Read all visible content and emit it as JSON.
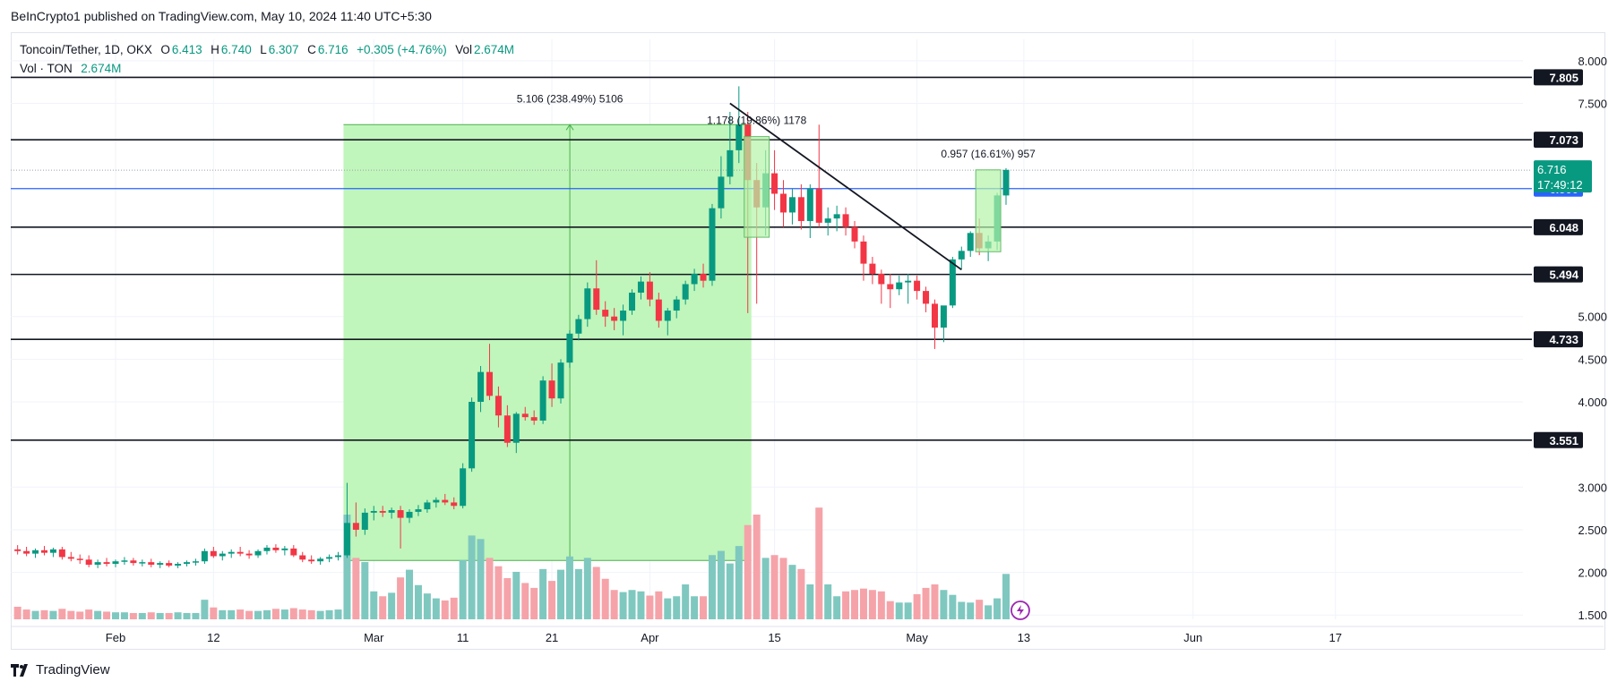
{
  "header": {
    "publisher": "BeInCrypto1 published on TradingView.com, May 10, 2024 11:40 UTC+5:30"
  },
  "legend": {
    "symbol": "Toncoin/Tether, 1D, OKX",
    "o_label": "O",
    "o_value": "6.413",
    "h_label": "H",
    "h_value": "6.740",
    "l_label": "L",
    "l_value": "6.307",
    "c_label": "C",
    "c_value": "6.716",
    "change": "+0.305 (+4.76%)",
    "vol_label": "Vol",
    "vol_value": "2.674M",
    "vol_series_label": "Vol · TON",
    "vol_series_value": "2.674M"
  },
  "footer": {
    "brand": "TradingView"
  },
  "colors": {
    "up": "#089981",
    "down": "#f23645",
    "vol_up": "#7fc8c0",
    "vol_down": "#f5a3a9",
    "range_fill": "#bdf5b7",
    "blue_line": "#2962ff"
  },
  "chart_data": {
    "type": "candlestick",
    "ylim": [
      1.45,
      8.25
    ],
    "y_ticks": [
      "8.000",
      "7.500",
      "5.000",
      "4.500",
      "4.000",
      "3.000",
      "2.500",
      "2.000",
      "1.500"
    ],
    "x_tick_labels": [
      {
        "date": "2024-02-01",
        "label": "Feb"
      },
      {
        "date": "2024-02-12",
        "label": "12"
      },
      {
        "date": "2024-03-01",
        "label": "Mar"
      },
      {
        "date": "2024-03-11",
        "label": "11"
      },
      {
        "date": "2024-03-21",
        "label": "21"
      },
      {
        "date": "2024-04-01",
        "label": "Apr"
      },
      {
        "date": "2024-04-15",
        "label": "15"
      },
      {
        "date": "2024-05-01",
        "label": "May"
      },
      {
        "date": "2024-05-13",
        "label": "13"
      },
      {
        "date": "2024-06-01",
        "label": "Jun"
      },
      {
        "date": "2024-06-17",
        "label": "17"
      }
    ],
    "horizontal_levels": [
      {
        "label": "7.805",
        "value": 7.805
      },
      {
        "label": "7.073",
        "value": 7.073
      },
      {
        "label": "6.048",
        "value": 6.048
      },
      {
        "label": "5.494",
        "value": 5.494
      },
      {
        "label": "4.733",
        "value": 4.733
      },
      {
        "label": "3.551",
        "value": 3.551
      }
    ],
    "blue_level": {
      "label": "6.500",
      "value": 6.5
    },
    "last_price": {
      "value": 6.716,
      "label": "6.716",
      "countdown": "17:49:12"
    },
    "range_box": {
      "start": "2024-02-27",
      "end": "2024-04-12",
      "low": 2.14,
      "high": 7.25,
      "label": "5.106 (238.49%) 5106"
    },
    "measures": [
      {
        "label": "1.178 (19.86%) 1178",
        "start": "2024-04-12",
        "end": "2024-04-14",
        "low": 5.93,
        "high": 7.11
      },
      {
        "label": "0.957 (16.61%) 957",
        "start": "2024-05-08",
        "end": "2024-05-10",
        "low": 5.76,
        "high": 6.72
      }
    ],
    "trendline": {
      "start": {
        "date": "2024-04-10",
        "value": 7.5
      },
      "end": {
        "date": "2024-05-06",
        "value": 5.55
      }
    },
    "candles": [
      {
        "d": "2024-01-21",
        "o": 2.27,
        "h": 2.32,
        "l": 2.21,
        "c": 2.25,
        "v": 0.18
      },
      {
        "d": "2024-01-22",
        "o": 2.25,
        "h": 2.3,
        "l": 2.19,
        "c": 2.22,
        "v": 0.14
      },
      {
        "d": "2024-01-23",
        "o": 2.22,
        "h": 2.28,
        "l": 2.17,
        "c": 2.26,
        "v": 0.12
      },
      {
        "d": "2024-01-24",
        "o": 2.26,
        "h": 2.31,
        "l": 2.2,
        "c": 2.23,
        "v": 0.13
      },
      {
        "d": "2024-01-25",
        "o": 2.23,
        "h": 2.29,
        "l": 2.18,
        "c": 2.27,
        "v": 0.12
      },
      {
        "d": "2024-01-26",
        "o": 2.27,
        "h": 2.3,
        "l": 2.15,
        "c": 2.18,
        "v": 0.15
      },
      {
        "d": "2024-01-27",
        "o": 2.18,
        "h": 2.24,
        "l": 2.13,
        "c": 2.16,
        "v": 0.12
      },
      {
        "d": "2024-01-28",
        "o": 2.16,
        "h": 2.21,
        "l": 2.1,
        "c": 2.15,
        "v": 0.11
      },
      {
        "d": "2024-01-29",
        "o": 2.15,
        "h": 2.2,
        "l": 2.06,
        "c": 2.09,
        "v": 0.14
      },
      {
        "d": "2024-01-30",
        "o": 2.09,
        "h": 2.15,
        "l": 2.05,
        "c": 2.12,
        "v": 0.12
      },
      {
        "d": "2024-01-31",
        "o": 2.12,
        "h": 2.17,
        "l": 2.07,
        "c": 2.1,
        "v": 0.11
      },
      {
        "d": "2024-02-01",
        "o": 2.1,
        "h": 2.15,
        "l": 2.06,
        "c": 2.13,
        "v": 0.1
      },
      {
        "d": "2024-02-02",
        "o": 2.13,
        "h": 2.18,
        "l": 2.09,
        "c": 2.14,
        "v": 0.1
      },
      {
        "d": "2024-02-03",
        "o": 2.14,
        "h": 2.17,
        "l": 2.08,
        "c": 2.11,
        "v": 0.09
      },
      {
        "d": "2024-02-04",
        "o": 2.11,
        "h": 2.15,
        "l": 2.07,
        "c": 2.12,
        "v": 0.09
      },
      {
        "d": "2024-02-05",
        "o": 2.12,
        "h": 2.16,
        "l": 2.06,
        "c": 2.09,
        "v": 0.1
      },
      {
        "d": "2024-02-06",
        "o": 2.09,
        "h": 2.13,
        "l": 2.05,
        "c": 2.11,
        "v": 0.09
      },
      {
        "d": "2024-02-07",
        "o": 2.11,
        "h": 2.14,
        "l": 2.06,
        "c": 2.08,
        "v": 0.09
      },
      {
        "d": "2024-02-08",
        "o": 2.08,
        "h": 2.12,
        "l": 2.05,
        "c": 2.1,
        "v": 0.1
      },
      {
        "d": "2024-02-09",
        "o": 2.1,
        "h": 2.14,
        "l": 2.07,
        "c": 2.12,
        "v": 0.09
      },
      {
        "d": "2024-02-10",
        "o": 2.12,
        "h": 2.16,
        "l": 2.08,
        "c": 2.13,
        "v": 0.09
      },
      {
        "d": "2024-02-11",
        "o": 2.13,
        "h": 2.28,
        "l": 2.1,
        "c": 2.25,
        "v": 0.28
      },
      {
        "d": "2024-02-12",
        "o": 2.25,
        "h": 2.3,
        "l": 2.17,
        "c": 2.19,
        "v": 0.17
      },
      {
        "d": "2024-02-13",
        "o": 2.19,
        "h": 2.25,
        "l": 2.14,
        "c": 2.22,
        "v": 0.13
      },
      {
        "d": "2024-02-14",
        "o": 2.22,
        "h": 2.27,
        "l": 2.17,
        "c": 2.24,
        "v": 0.13
      },
      {
        "d": "2024-02-15",
        "o": 2.24,
        "h": 2.3,
        "l": 2.19,
        "c": 2.22,
        "v": 0.14
      },
      {
        "d": "2024-02-16",
        "o": 2.22,
        "h": 2.26,
        "l": 2.16,
        "c": 2.2,
        "v": 0.12
      },
      {
        "d": "2024-02-17",
        "o": 2.2,
        "h": 2.27,
        "l": 2.17,
        "c": 2.25,
        "v": 0.12
      },
      {
        "d": "2024-02-18",
        "o": 2.25,
        "h": 2.32,
        "l": 2.21,
        "c": 2.29,
        "v": 0.13
      },
      {
        "d": "2024-02-19",
        "o": 2.29,
        "h": 2.33,
        "l": 2.23,
        "c": 2.26,
        "v": 0.15
      },
      {
        "d": "2024-02-20",
        "o": 2.26,
        "h": 2.31,
        "l": 2.2,
        "c": 2.28,
        "v": 0.14
      },
      {
        "d": "2024-02-21",
        "o": 2.28,
        "h": 2.32,
        "l": 2.18,
        "c": 2.2,
        "v": 0.16
      },
      {
        "d": "2024-02-22",
        "o": 2.2,
        "h": 2.24,
        "l": 2.12,
        "c": 2.15,
        "v": 0.14
      },
      {
        "d": "2024-02-23",
        "o": 2.15,
        "h": 2.2,
        "l": 2.1,
        "c": 2.13,
        "v": 0.13
      },
      {
        "d": "2024-02-24",
        "o": 2.13,
        "h": 2.18,
        "l": 2.09,
        "c": 2.16,
        "v": 0.12
      },
      {
        "d": "2024-02-25",
        "o": 2.16,
        "h": 2.21,
        "l": 2.12,
        "c": 2.18,
        "v": 0.13
      },
      {
        "d": "2024-02-26",
        "o": 2.18,
        "h": 2.24,
        "l": 2.14,
        "c": 2.2,
        "v": 0.14
      },
      {
        "d": "2024-02-27",
        "o": 2.2,
        "h": 3.05,
        "l": 2.17,
        "c": 2.58,
        "v": 1.5
      },
      {
        "d": "2024-02-28",
        "o": 2.58,
        "h": 2.82,
        "l": 2.42,
        "c": 2.5,
        "v": 0.88
      },
      {
        "d": "2024-02-29",
        "o": 2.5,
        "h": 2.75,
        "l": 2.44,
        "c": 2.7,
        "v": 0.82
      },
      {
        "d": "2024-03-01",
        "o": 2.7,
        "h": 2.78,
        "l": 2.61,
        "c": 2.72,
        "v": 0.4
      },
      {
        "d": "2024-03-02",
        "o": 2.72,
        "h": 2.78,
        "l": 2.65,
        "c": 2.7,
        "v": 0.33
      },
      {
        "d": "2024-03-03",
        "o": 2.7,
        "h": 2.76,
        "l": 2.63,
        "c": 2.73,
        "v": 0.38
      },
      {
        "d": "2024-03-04",
        "o": 2.73,
        "h": 2.78,
        "l": 2.28,
        "c": 2.64,
        "v": 0.6
      },
      {
        "d": "2024-03-05",
        "o": 2.64,
        "h": 2.74,
        "l": 2.58,
        "c": 2.71,
        "v": 0.71
      },
      {
        "d": "2024-03-06",
        "o": 2.71,
        "h": 2.79,
        "l": 2.66,
        "c": 2.74,
        "v": 0.49
      },
      {
        "d": "2024-03-07",
        "o": 2.74,
        "h": 2.85,
        "l": 2.7,
        "c": 2.82,
        "v": 0.37
      },
      {
        "d": "2024-03-08",
        "o": 2.82,
        "h": 2.88,
        "l": 2.76,
        "c": 2.85,
        "v": 0.3
      },
      {
        "d": "2024-03-09",
        "o": 2.85,
        "h": 2.92,
        "l": 2.79,
        "c": 2.82,
        "v": 0.27
      },
      {
        "d": "2024-03-10",
        "o": 2.82,
        "h": 2.88,
        "l": 2.74,
        "c": 2.78,
        "v": 0.31
      },
      {
        "d": "2024-03-11",
        "o": 2.78,
        "h": 3.28,
        "l": 2.75,
        "c": 3.22,
        "v": 0.85
      },
      {
        "d": "2024-03-12",
        "o": 3.22,
        "h": 4.05,
        "l": 3.18,
        "c": 4.0,
        "v": 1.2
      },
      {
        "d": "2024-03-13",
        "o": 4.0,
        "h": 4.42,
        "l": 3.88,
        "c": 4.35,
        "v": 1.15
      },
      {
        "d": "2024-03-14",
        "o": 4.35,
        "h": 4.68,
        "l": 4.02,
        "c": 4.07,
        "v": 0.88
      },
      {
        "d": "2024-03-15",
        "o": 4.07,
        "h": 4.18,
        "l": 3.7,
        "c": 3.84,
        "v": 0.76
      },
      {
        "d": "2024-03-16",
        "o": 3.84,
        "h": 3.96,
        "l": 3.47,
        "c": 3.52,
        "v": 0.59
      },
      {
        "d": "2024-03-17",
        "o": 3.52,
        "h": 3.88,
        "l": 3.4,
        "c": 3.86,
        "v": 0.68
      },
      {
        "d": "2024-03-18",
        "o": 3.86,
        "h": 3.94,
        "l": 3.78,
        "c": 3.82,
        "v": 0.52
      },
      {
        "d": "2024-03-19",
        "o": 3.82,
        "h": 3.9,
        "l": 3.73,
        "c": 3.78,
        "v": 0.45
      },
      {
        "d": "2024-03-20",
        "o": 3.78,
        "h": 4.3,
        "l": 3.74,
        "c": 4.25,
        "v": 0.72
      },
      {
        "d": "2024-03-21",
        "o": 4.25,
        "h": 4.45,
        "l": 3.94,
        "c": 4.04,
        "v": 0.55
      },
      {
        "d": "2024-03-22",
        "o": 4.04,
        "h": 4.5,
        "l": 3.98,
        "c": 4.46,
        "v": 0.71
      },
      {
        "d": "2024-03-23",
        "o": 4.46,
        "h": 4.84,
        "l": 4.4,
        "c": 4.8,
        "v": 0.9
      },
      {
        "d": "2024-03-24",
        "o": 4.8,
        "h": 5.02,
        "l": 4.72,
        "c": 4.97,
        "v": 0.72
      },
      {
        "d": "2024-03-25",
        "o": 4.97,
        "h": 5.4,
        "l": 4.88,
        "c": 5.33,
        "v": 0.88
      },
      {
        "d": "2024-03-26",
        "o": 5.33,
        "h": 5.66,
        "l": 5.02,
        "c": 5.08,
        "v": 0.75
      },
      {
        "d": "2024-03-27",
        "o": 5.08,
        "h": 5.18,
        "l": 4.88,
        "c": 5.0,
        "v": 0.58
      },
      {
        "d": "2024-03-28",
        "o": 5.0,
        "h": 5.1,
        "l": 4.84,
        "c": 4.95,
        "v": 0.42
      },
      {
        "d": "2024-03-29",
        "o": 4.95,
        "h": 5.14,
        "l": 4.78,
        "c": 5.07,
        "v": 0.39
      },
      {
        "d": "2024-03-30",
        "o": 5.07,
        "h": 5.32,
        "l": 5.02,
        "c": 5.28,
        "v": 0.42
      },
      {
        "d": "2024-03-31",
        "o": 5.28,
        "h": 5.47,
        "l": 5.2,
        "c": 5.41,
        "v": 0.4
      },
      {
        "d": "2024-04-01",
        "o": 5.41,
        "h": 5.52,
        "l": 5.12,
        "c": 5.2,
        "v": 0.34
      },
      {
        "d": "2024-04-02",
        "o": 5.2,
        "h": 5.28,
        "l": 4.87,
        "c": 4.95,
        "v": 0.4
      },
      {
        "d": "2024-04-03",
        "o": 4.95,
        "h": 5.1,
        "l": 4.78,
        "c": 5.07,
        "v": 0.3
      },
      {
        "d": "2024-04-04",
        "o": 5.07,
        "h": 5.24,
        "l": 4.98,
        "c": 5.2,
        "v": 0.33
      },
      {
        "d": "2024-04-05",
        "o": 5.2,
        "h": 5.42,
        "l": 5.14,
        "c": 5.38,
        "v": 0.5
      },
      {
        "d": "2024-04-06",
        "o": 5.38,
        "h": 5.56,
        "l": 5.3,
        "c": 5.5,
        "v": 0.33
      },
      {
        "d": "2024-04-07",
        "o": 5.5,
        "h": 5.62,
        "l": 5.34,
        "c": 5.42,
        "v": 0.33
      },
      {
        "d": "2024-04-08",
        "o": 5.42,
        "h": 6.32,
        "l": 5.36,
        "c": 6.27,
        "v": 0.92
      },
      {
        "d": "2024-04-09",
        "o": 6.27,
        "h": 6.88,
        "l": 6.15,
        "c": 6.64,
        "v": 0.98
      },
      {
        "d": "2024-04-10",
        "o": 6.64,
        "h": 7.4,
        "l": 6.55,
        "c": 6.95,
        "v": 0.8
      },
      {
        "d": "2024-04-11",
        "o": 6.95,
        "h": 7.7,
        "l": 6.8,
        "c": 7.25,
        "v": 1.05
      },
      {
        "d": "2024-04-12",
        "o": 7.25,
        "h": 7.4,
        "l": 5.04,
        "c": 6.6,
        "v": 1.35
      },
      {
        "d": "2024-04-13",
        "o": 6.6,
        "h": 6.8,
        "l": 5.15,
        "c": 6.28,
        "v": 1.5
      },
      {
        "d": "2024-04-14",
        "o": 6.28,
        "h": 6.95,
        "l": 5.95,
        "c": 6.68,
        "v": 0.88
      },
      {
        "d": "2024-04-15",
        "o": 6.68,
        "h": 6.95,
        "l": 6.25,
        "c": 6.44,
        "v": 0.92
      },
      {
        "d": "2024-04-16",
        "o": 6.44,
        "h": 6.6,
        "l": 6.05,
        "c": 6.22,
        "v": 0.88
      },
      {
        "d": "2024-04-17",
        "o": 6.22,
        "h": 6.5,
        "l": 6.08,
        "c": 6.4,
        "v": 0.78
      },
      {
        "d": "2024-04-18",
        "o": 6.4,
        "h": 6.55,
        "l": 6.02,
        "c": 6.12,
        "v": 0.72
      },
      {
        "d": "2024-04-19",
        "o": 6.12,
        "h": 6.55,
        "l": 5.92,
        "c": 6.5,
        "v": 0.5
      },
      {
        "d": "2024-04-20",
        "o": 6.5,
        "h": 7.25,
        "l": 6.05,
        "c": 6.1,
        "v": 1.6
      },
      {
        "d": "2024-04-21",
        "o": 6.1,
        "h": 6.28,
        "l": 5.95,
        "c": 6.15,
        "v": 0.5
      },
      {
        "d": "2024-04-22",
        "o": 6.15,
        "h": 6.3,
        "l": 6.0,
        "c": 6.2,
        "v": 0.33
      },
      {
        "d": "2024-04-23",
        "o": 6.2,
        "h": 6.28,
        "l": 5.95,
        "c": 6.05,
        "v": 0.4
      },
      {
        "d": "2024-04-24",
        "o": 6.05,
        "h": 6.12,
        "l": 5.8,
        "c": 5.88,
        "v": 0.42
      },
      {
        "d": "2024-04-25",
        "o": 5.88,
        "h": 5.95,
        "l": 5.42,
        "c": 5.62,
        "v": 0.44
      },
      {
        "d": "2024-04-26",
        "o": 5.62,
        "h": 5.7,
        "l": 5.38,
        "c": 5.5,
        "v": 0.42
      },
      {
        "d": "2024-04-27",
        "o": 5.5,
        "h": 5.55,
        "l": 5.15,
        "c": 5.38,
        "v": 0.4
      },
      {
        "d": "2024-04-28",
        "o": 5.38,
        "h": 5.5,
        "l": 5.1,
        "c": 5.32,
        "v": 0.26
      },
      {
        "d": "2024-04-29",
        "o": 5.32,
        "h": 5.48,
        "l": 5.25,
        "c": 5.4,
        "v": 0.24
      },
      {
        "d": "2024-04-30",
        "o": 5.4,
        "h": 5.5,
        "l": 5.15,
        "c": 5.42,
        "v": 0.24
      },
      {
        "d": "2024-05-01",
        "o": 5.42,
        "h": 5.48,
        "l": 5.2,
        "c": 5.3,
        "v": 0.36
      },
      {
        "d": "2024-05-02",
        "o": 5.3,
        "h": 5.35,
        "l": 5.05,
        "c": 5.15,
        "v": 0.45
      },
      {
        "d": "2024-05-03",
        "o": 5.15,
        "h": 5.2,
        "l": 4.62,
        "c": 4.87,
        "v": 0.5
      },
      {
        "d": "2024-05-04",
        "o": 4.87,
        "h": 5.1,
        "l": 4.7,
        "c": 5.13,
        "v": 0.42
      },
      {
        "d": "2024-05-05",
        "o": 5.13,
        "h": 5.7,
        "l": 5.1,
        "c": 5.67,
        "v": 0.35
      },
      {
        "d": "2024-05-06",
        "o": 5.67,
        "h": 5.82,
        "l": 5.55,
        "c": 5.77,
        "v": 0.25
      },
      {
        "d": "2024-05-07",
        "o": 5.77,
        "h": 6.0,
        "l": 5.7,
        "c": 5.98,
        "v": 0.24
      },
      {
        "d": "2024-05-08",
        "o": 5.98,
        "h": 6.15,
        "l": 5.72,
        "c": 5.8,
        "v": 0.28
      },
      {
        "d": "2024-05-09",
        "o": 5.8,
        "h": 5.95,
        "l": 5.65,
        "c": 5.88,
        "v": 0.2
      },
      {
        "d": "2024-05-10",
        "o": 5.88,
        "h": 6.45,
        "l": 5.78,
        "c": 6.42,
        "v": 0.3
      },
      {
        "d": "2024-05-11",
        "o": 6.42,
        "h": 6.74,
        "l": 6.31,
        "c": 6.72,
        "v": 0.65
      }
    ]
  }
}
